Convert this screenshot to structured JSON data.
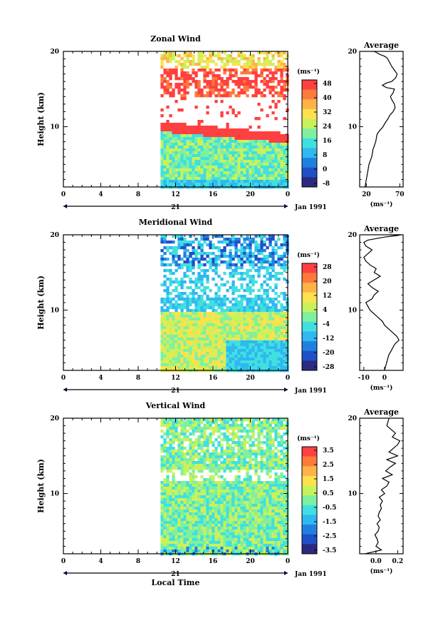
{
  "chart_data": [
    {
      "type": "heatmap",
      "title": "Zonal Wind",
      "ylabel": "Height (km)",
      "xticks": [
        "0",
        "4",
        "8",
        "12",
        "16",
        "20",
        "0"
      ],
      "yticks": [
        "20",
        "10"
      ],
      "ylim": [
        2,
        20
      ],
      "date_label": "21",
      "month_label": "Jan 1991",
      "colorbar": {
        "unit": "(ms⁻¹)",
        "labels": [
          "48",
          "40",
          "32",
          "24",
          "16",
          "8",
          "0",
          "-8"
        ],
        "colors": [
          "#ff4040",
          "#ff7a3a",
          "#ffb347",
          "#ffe14d",
          "#c8f25a",
          "#7ff0a0",
          "#40e0e0",
          "#30b8f0",
          "#2080e0",
          "#2050c8",
          "#2a2a80"
        ]
      },
      "profile": {
        "title": "Average",
        "xticks": [
          "20",
          "70"
        ],
        "xlabel": "(ms⁻¹)",
        "yticks": [
          "20",
          "10"
        ],
        "xlim": [
          10,
          75
        ],
        "x": [
          18,
          20,
          22,
          24,
          28,
          30,
          34,
          36,
          40,
          45,
          48,
          52,
          55,
          60,
          63,
          62,
          60,
          58,
          56,
          60,
          62,
          50,
          44,
          50,
          58,
          64,
          66,
          62,
          58,
          55,
          52,
          50,
          46,
          40,
          36,
          32,
          30
        ],
        "y": [
          2,
          3,
          4,
          5,
          6,
          7,
          8,
          9,
          9.5,
          10,
          10.5,
          11,
          11.5,
          12,
          12.5,
          13,
          13.3,
          13.6,
          14,
          14.5,
          15,
          15.2,
          15.5,
          15.8,
          16,
          16.5,
          17,
          17.5,
          18,
          18.5,
          19,
          19.2,
          19.4,
          19.6,
          19.8,
          20,
          20
        ]
      }
    },
    {
      "type": "heatmap",
      "title": "Meridional Wind",
      "ylabel": "Height (km)",
      "xticks": [
        "0",
        "4",
        "8",
        "12",
        "16",
        "20",
        "0"
      ],
      "yticks": [
        "20",
        "10"
      ],
      "ylim": [
        2,
        20
      ],
      "date_label": "21",
      "month_label": "Jan 1991",
      "colorbar": {
        "unit": "(ms⁻¹)",
        "labels": [
          "28",
          "20",
          "12",
          "4",
          "-4",
          "-12",
          "-20",
          "-28"
        ],
        "colors": [
          "#ff4040",
          "#ff7a3a",
          "#ffb347",
          "#ffe14d",
          "#c8f25a",
          "#7ff0a0",
          "#40e0e0",
          "#30b8f0",
          "#2080e0",
          "#2050c8",
          "#2a2a80"
        ]
      },
      "profile": {
        "title": "Average",
        "xticks": [
          "-10",
          "0"
        ],
        "xlabel": "(ms⁻¹)",
        "yticks": [
          "20",
          "10"
        ],
        "xlim": [
          -12,
          9
        ],
        "x": [
          0,
          1,
          2,
          4,
          5,
          7,
          6,
          4,
          2,
          0,
          -1,
          -3,
          -5,
          -7,
          -8,
          -9,
          -6,
          -5,
          -3,
          -6,
          -8,
          -5,
          -2,
          -5,
          -4,
          -7,
          -9,
          -10,
          -8,
          -6,
          -9,
          -10,
          -8,
          -4,
          0,
          3,
          6,
          8,
          7,
          5,
          3
        ],
        "y": [
          2,
          3,
          4,
          5,
          5.5,
          6,
          6.5,
          7,
          7.5,
          8,
          8.5,
          9,
          9.5,
          10,
          10.5,
          11,
          11.5,
          12,
          12.5,
          13,
          13.5,
          14,
          14.5,
          15,
          15.5,
          16,
          16.5,
          17,
          17.5,
          18,
          18.5,
          19,
          19.3,
          19.5,
          19.7,
          19.8,
          19.9,
          20,
          20,
          20,
          20
        ]
      }
    },
    {
      "type": "heatmap",
      "title": "Vertical Wind",
      "ylabel": "Height (km)",
      "xlabel": "Local Time",
      "xticks": [
        "0",
        "4",
        "8",
        "12",
        "16",
        "20",
        "0"
      ],
      "yticks": [
        "20",
        "10"
      ],
      "ylim": [
        2,
        20
      ],
      "date_label": "21",
      "month_label": "Jan 1991",
      "colorbar": {
        "unit": "(ms⁻¹)",
        "labels": [
          "3.5",
          "2.5",
          "1.5",
          "0.5",
          "-0.5",
          "-1.5",
          "-2.5",
          "-3.5"
        ],
        "colors": [
          "#ff4040",
          "#ff7a3a",
          "#ffb347",
          "#ffe14d",
          "#c8f25a",
          "#7ff0a0",
          "#40e0e0",
          "#30b8f0",
          "#2080e0",
          "#2050c8",
          "#2a2a80"
        ]
      },
      "profile": {
        "title": "Average",
        "xticks": [
          "0.0",
          "0.2"
        ],
        "xlabel": "(ms⁻¹)",
        "yticks": [
          "20",
          "10"
        ],
        "xlim": [
          -0.15,
          0.25
        ],
        "x": [
          -0.1,
          0.05,
          0,
          0.02,
          0.01,
          -0.01,
          0.02,
          0.03,
          0.01,
          0.04,
          0.02,
          0.03,
          0.05,
          0.04,
          0.06,
          0.03,
          0.08,
          0.05,
          0.1,
          0.12,
          0.06,
          0.15,
          0.09,
          0.13,
          0.18,
          0.1,
          0.2,
          0.12,
          0.16,
          0.2,
          0.22,
          0.15,
          0.18,
          0.1,
          0.12
        ],
        "y": [
          2,
          2.5,
          3,
          3.5,
          4,
          4.5,
          5,
          5.5,
          6,
          6.5,
          7,
          7.5,
          8,
          8.5,
          9,
          9.5,
          10,
          10.5,
          11,
          11.5,
          12,
          12.5,
          13,
          13.5,
          14,
          14.5,
          15,
          15.5,
          16,
          16.5,
          17,
          17.5,
          18,
          19,
          20
        ]
      }
    }
  ]
}
